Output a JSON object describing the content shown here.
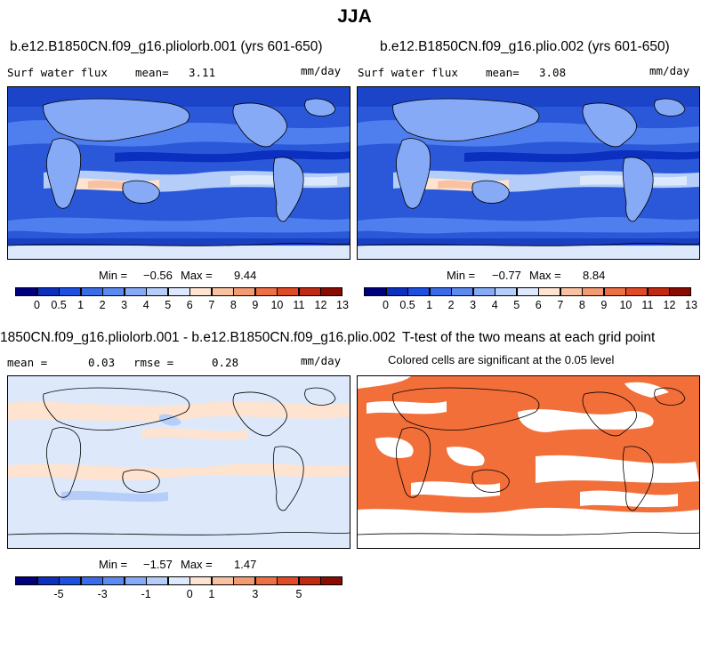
{
  "figure_title": "JJA",
  "panels": {
    "p1": {
      "title": "b.e12.B1850CN.f09_g16.pliolorb.001 (yrs 601-650)",
      "variable": "Surf water flux",
      "mean_label": "mean=",
      "mean_value": "3.11",
      "units": "mm/day",
      "min_label": "Min =",
      "min_value": "−0.56",
      "max_label": "Max =",
      "max_value": "9.44"
    },
    "p2": {
      "title": "b.e12.B1850CN.f09_g16.plio.002 (yrs 601-650)",
      "variable": "Surf water flux",
      "mean_label": "mean=",
      "mean_value": "3.08",
      "units": "mm/day",
      "min_label": "Min =",
      "min_value": "−0.77",
      "max_label": "Max =",
      "max_value": "8.84"
    },
    "p3": {
      "title": "1850CN.f09_g16.pliolorb.001 - b.e12.B1850CN.f09_g16.plio.002",
      "mean_label": "mean =",
      "mean_value": "0.03",
      "rmse_label": "rmse =",
      "rmse_value": "0.28",
      "units": "mm/day",
      "min_label": "Min =",
      "min_value": "−1.57",
      "max_label": "Max =",
      "max_value": "1.47"
    },
    "p4": {
      "title": "T-test of the two means at each grid point",
      "subtitle": "Colored cells are significant at the 0.05 level"
    }
  },
  "colors": {
    "abs_scale": [
      "#00007f",
      "#0b2fbf",
      "#1d4fe0",
      "#3a6be8",
      "#5b8af0",
      "#86aaf5",
      "#b5cdf9",
      "#dce8fb",
      "#fde3d0",
      "#f8c2a2",
      "#f29a72",
      "#ec7043",
      "#e04a24",
      "#c02a10",
      "#8a0c00"
    ],
    "diff_scale": [
      "#00007f",
      "#0b2fbf",
      "#1d4fe0",
      "#3a6be8",
      "#5b8af0",
      "#86aaf5",
      "#b5cdf9",
      "#dce8fb",
      "#fde3d0",
      "#f8c2a2",
      "#f29a72",
      "#ec7043",
      "#e04a24",
      "#c02a10",
      "#8a0c00"
    ],
    "significance": "#f26f3a",
    "ocean_deep": "#2a58d8",
    "diff_background": "#dde9fb"
  },
  "chart_data": [
    {
      "type": "heatmap",
      "title": "b.e12.B1850CN.f09_g16.pliolorb.001 (yrs 601-650)",
      "variable": "Surf water flux",
      "units": "mm/day",
      "mean": 3.11,
      "min": -0.56,
      "max": 9.44,
      "colorbar_ticks": [
        "0",
        "0.5",
        "1",
        "2",
        "3",
        "4",
        "5",
        "6",
        "7",
        "8",
        "9",
        "10",
        "11",
        "12",
        "13"
      ]
    },
    {
      "type": "heatmap",
      "title": "b.e12.B1850CN.f09_g16.plio.002 (yrs 601-650)",
      "variable": "Surf water flux",
      "units": "mm/day",
      "mean": 3.08,
      "min": -0.77,
      "max": 8.84,
      "colorbar_ticks": [
        "0",
        "0.5",
        "1",
        "2",
        "3",
        "4",
        "5",
        "6",
        "7",
        "8",
        "9",
        "10",
        "11",
        "12",
        "13"
      ]
    },
    {
      "type": "heatmap",
      "title": "1850CN.f09_g16.pliolorb.001 - b.e12.B1850CN.f09_g16.plio.002",
      "units": "mm/day",
      "mean": 0.03,
      "rmse": 0.28,
      "min": -1.57,
      "max": 1.47,
      "colorbar_ticks": [
        "-5",
        "-3",
        "-1",
        "0",
        "1",
        "3",
        "5"
      ]
    },
    {
      "type": "heatmap",
      "title": "T-test of the two means at each grid point",
      "subtitle": "Colored cells are significant at the 0.05 level"
    }
  ]
}
